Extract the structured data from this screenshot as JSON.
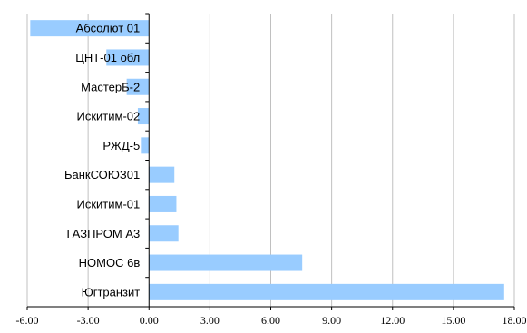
{
  "chart_data": {
    "type": "bar",
    "orientation": "horizontal",
    "categories": [
      "Абсолют 01",
      "ЦНТ-01 обл",
      "МастерБ-2",
      "Искитим-02",
      "РЖД-5",
      "БанкСОЮЗ01",
      "Искитим-01",
      "ГАЗПРОМ А3",
      "НОМОС 6в",
      "Югтранзит"
    ],
    "values": [
      -5.85,
      -2.1,
      -1.1,
      -0.55,
      -0.4,
      1.25,
      1.35,
      1.45,
      7.55,
      17.5
    ],
    "xlim": [
      -6.0,
      18.0
    ],
    "xticks": [
      "-6.00",
      "-3.00",
      "0.00",
      "3.00",
      "6.00",
      "9.00",
      "12.00",
      "15.00",
      "18.00"
    ],
    "grid": "vertical",
    "legend": "none",
    "bar_color": "#99ccff",
    "grid_color": "#c0c0c0",
    "axis_color": "#000000"
  }
}
